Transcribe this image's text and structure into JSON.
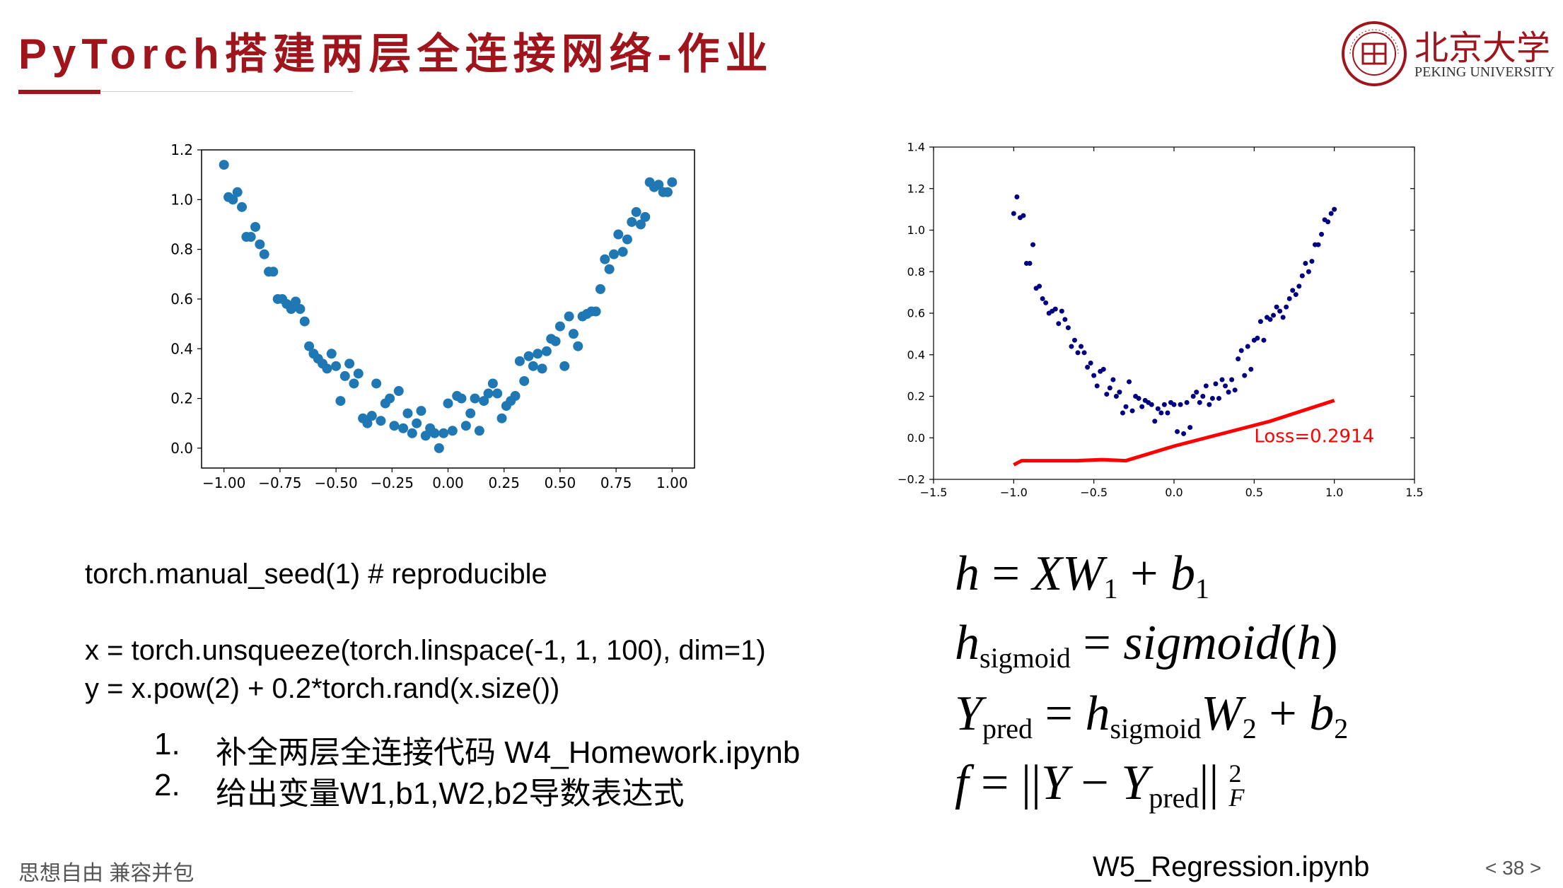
{
  "slide": {
    "title": "PyTorch搭建两层全连接网络-作业",
    "logo": {
      "cn": "北京大学",
      "en": "PEKING UNIVERSITY",
      "seal_text": "PEKING UNIVERSITY 1898"
    },
    "code": {
      "line1": "torch.manual_seed(1)    # reproducible",
      "line2": "x = torch.unsqueeze(torch.linspace(-1, 1, 100), dim=1)",
      "line3": "y = x.pow(2) + 0.2*torch.rand(x.size())"
    },
    "tasks": [
      {
        "num": "1.",
        "text": "补全两层全连接代码 W4_Homework.ipynb"
      },
      {
        "num": "2.",
        "text": "给出变量W1,b1,W2,b2导数表达式"
      }
    ],
    "equations": {
      "eq1": {
        "h": "h",
        "eq": "=",
        "xw": "XW",
        "sub1": "1",
        "plus": "+",
        "b": "b",
        "sub2": "1"
      },
      "eq2": {
        "h": "h",
        "sub": "sigmoid",
        "eq": "=",
        "fn": "sigmoid",
        "lp": "(",
        "arg": "h",
        "rp": ")"
      },
      "eq3": {
        "y": "Y",
        "sub": "pred",
        "eq": "=",
        "h": "h",
        "hsub": "sigmoid",
        "w": "W",
        "wsub": "2",
        "plus": "+",
        "b": "b",
        "bsub": "2"
      },
      "eq4": {
        "f": "f",
        "eq": "=",
        "bars1": "||",
        "y": "Y",
        "minus": "−",
        "y2": "Y",
        "sub": "pred",
        "bars2": "||",
        "sup": "2",
        "subF": "F"
      }
    },
    "footer": {
      "motto": "思想自由 兼容并包",
      "file": "W5_Regression.ipynb",
      "page": "< 38 >"
    },
    "colors": {
      "title": "#a0141c",
      "scatter_left": "#1f77b4",
      "scatter_right": "#000080",
      "fit_line": "#ff0000"
    }
  },
  "chart_data": [
    {
      "type": "scatter",
      "xlim": [
        -1.1,
        1.1
      ],
      "ylim": [
        -0.08,
        1.2
      ],
      "xticks": [
        -1.0,
        -0.75,
        -0.5,
        -0.25,
        0.0,
        0.25,
        0.5,
        0.75,
        1.0
      ],
      "xtick_labels": [
        "−1.00",
        "−0.75",
        "−0.50",
        "−0.25",
        "0.00",
        "0.25",
        "0.50",
        "0.75",
        "1.00"
      ],
      "yticks": [
        0.0,
        0.2,
        0.4,
        0.6,
        0.8,
        1.0,
        1.2
      ],
      "ytick_labels": [
        "0.0",
        "0.2",
        "0.4",
        "0.6",
        "0.8",
        "1.0",
        "1.2"
      ],
      "grid": false,
      "series": [
        {
          "x": [
            -1.0,
            -0.98,
            -0.96,
            -0.94,
            -0.92,
            -0.9,
            -0.88,
            -0.86,
            -0.84,
            -0.82,
            -0.8,
            -0.78,
            -0.76,
            -0.74,
            -0.72,
            -0.7,
            -0.68,
            -0.66,
            -0.64,
            -0.62,
            -0.6,
            -0.58,
            -0.56,
            -0.54,
            -0.52,
            -0.5,
            -0.48,
            -0.46,
            -0.44,
            -0.42,
            -0.4,
            -0.38,
            -0.36,
            -0.34,
            -0.32,
            -0.3,
            -0.28,
            -0.26,
            -0.24,
            -0.22,
            -0.2,
            -0.18,
            -0.16,
            -0.14,
            -0.12,
            -0.1,
            -0.08,
            -0.06,
            -0.04,
            -0.02,
            0.0,
            0.02,
            0.04,
            0.06,
            0.08,
            0.1,
            0.12,
            0.14,
            0.16,
            0.18,
            0.2,
            0.22,
            0.24,
            0.26,
            0.28,
            0.3,
            0.32,
            0.34,
            0.36,
            0.38,
            0.4,
            0.42,
            0.44,
            0.46,
            0.48,
            0.5,
            0.52,
            0.54,
            0.56,
            0.58,
            0.6,
            0.62,
            0.64,
            0.66,
            0.68,
            0.7,
            0.72,
            0.74,
            0.76,
            0.78,
            0.8,
            0.82,
            0.84,
            0.86,
            0.88,
            0.9,
            0.92,
            0.94,
            0.96,
            0.98,
            1.0
          ],
          "y": [
            1.14,
            1.01,
            1.0,
            1.03,
            0.97,
            0.85,
            0.85,
            0.89,
            0.82,
            0.78,
            0.71,
            0.71,
            0.6,
            0.6,
            0.58,
            0.56,
            0.59,
            0.56,
            0.51,
            0.41,
            0.38,
            0.36,
            0.34,
            0.32,
            0.38,
            0.33,
            0.19,
            0.29,
            0.34,
            0.26,
            0.3,
            0.12,
            0.1,
            0.13,
            0.26,
            0.11,
            0.18,
            0.2,
            0.09,
            0.23,
            0.08,
            0.14,
            0.06,
            0.1,
            0.15,
            0.05,
            0.08,
            0.06,
            0.0,
            0.06,
            0.18,
            0.07,
            0.21,
            0.2,
            0.09,
            0.14,
            0.2,
            0.07,
            0.19,
            0.22,
            0.26,
            0.22,
            0.12,
            0.17,
            0.19,
            0.21,
            0.35,
            0.27,
            0.37,
            0.33,
            0.38,
            0.32,
            0.39,
            0.44,
            0.43,
            0.49,
            0.33,
            0.53,
            0.46,
            0.41,
            0.53,
            0.54,
            0.55,
            0.55,
            0.64,
            0.76,
            0.72,
            0.78,
            0.86,
            0.79,
            0.84,
            0.91,
            0.95,
            0.9,
            0.93,
            1.07,
            1.05,
            1.06,
            1.03,
            1.03,
            1.07
          ]
        }
      ]
    },
    {
      "type": "scatter",
      "xlim": [
        -1.5,
        1.5
      ],
      "ylim": [
        -0.2,
        1.4
      ],
      "xticks": [
        -1.5,
        -1.0,
        -0.5,
        0.0,
        0.5,
        1.0,
        1.5
      ],
      "xtick_labels": [
        "−1.5",
        "−1.0",
        "−0.5",
        "0.0",
        "0.5",
        "1.0",
        "1.5"
      ],
      "yticks": [
        -0.2,
        0.0,
        0.2,
        0.4,
        0.6,
        0.8,
        1.0,
        1.2,
        1.4
      ],
      "ytick_labels": [
        "−0.2",
        "0.0",
        "0.2",
        "0.4",
        "0.6",
        "0.8",
        "1.0",
        "1.2",
        "1.4"
      ],
      "grid": false,
      "annotation": "Loss=0.2914",
      "series": [
        {
          "x": [
            -1.0,
            -0.98,
            -0.96,
            -0.94,
            -0.92,
            -0.9,
            -0.88,
            -0.86,
            -0.84,
            -0.82,
            -0.8,
            -0.78,
            -0.76,
            -0.74,
            -0.72,
            -0.7,
            -0.68,
            -0.66,
            -0.64,
            -0.62,
            -0.6,
            -0.58,
            -0.56,
            -0.54,
            -0.52,
            -0.5,
            -0.48,
            -0.46,
            -0.44,
            -0.42,
            -0.4,
            -0.38,
            -0.36,
            -0.34,
            -0.32,
            -0.3,
            -0.28,
            -0.26,
            -0.24,
            -0.22,
            -0.2,
            -0.18,
            -0.16,
            -0.14,
            -0.12,
            -0.1,
            -0.08,
            -0.06,
            -0.04,
            -0.02,
            0.0,
            0.02,
            0.04,
            0.06,
            0.08,
            0.1,
            0.12,
            0.14,
            0.16,
            0.18,
            0.2,
            0.22,
            0.24,
            0.26,
            0.28,
            0.3,
            0.32,
            0.34,
            0.36,
            0.38,
            0.4,
            0.42,
            0.44,
            0.46,
            0.48,
            0.5,
            0.52,
            0.54,
            0.56,
            0.58,
            0.6,
            0.62,
            0.64,
            0.66,
            0.68,
            0.7,
            0.72,
            0.74,
            0.76,
            0.78,
            0.8,
            0.82,
            0.84,
            0.86,
            0.88,
            0.9,
            0.92,
            0.94,
            0.96,
            0.98,
            1.0
          ],
          "y": [
            1.08,
            1.16,
            1.06,
            1.07,
            0.84,
            0.84,
            0.93,
            0.72,
            0.73,
            0.67,
            0.65,
            0.6,
            0.61,
            0.62,
            0.55,
            0.61,
            0.57,
            0.53,
            0.44,
            0.47,
            0.41,
            0.44,
            0.41,
            0.34,
            0.36,
            0.3,
            0.25,
            0.32,
            0.33,
            0.21,
            0.24,
            0.28,
            0.2,
            0.22,
            0.12,
            0.15,
            0.27,
            0.13,
            0.2,
            0.19,
            0.15,
            0.18,
            0.17,
            0.16,
            0.08,
            0.14,
            0.12,
            0.16,
            0.12,
            0.17,
            0.16,
            0.03,
            0.16,
            0.02,
            0.17,
            0.05,
            0.2,
            0.22,
            0.17,
            0.2,
            0.25,
            0.16,
            0.19,
            0.26,
            0.19,
            0.28,
            0.25,
            0.22,
            0.28,
            0.23,
            0.38,
            0.42,
            0.3,
            0.44,
            0.33,
            0.47,
            0.48,
            0.56,
            0.47,
            0.58,
            0.57,
            0.59,
            0.63,
            0.61,
            0.58,
            0.63,
            0.67,
            0.71,
            0.69,
            0.73,
            0.78,
            0.84,
            0.8,
            0.85,
            0.93,
            0.93,
            0.98,
            1.05,
            1.04,
            1.08,
            1.1
          ]
        },
        {
          "type": "line",
          "x": [
            -1.0,
            -0.95,
            -0.8,
            -0.6,
            -0.45,
            -0.3,
            0.0,
            0.3,
            0.6,
            1.0
          ],
          "y": [
            -0.13,
            -0.11,
            -0.11,
            -0.11,
            -0.105,
            -0.11,
            -0.04,
            0.02,
            0.08,
            0.18
          ]
        }
      ]
    }
  ]
}
